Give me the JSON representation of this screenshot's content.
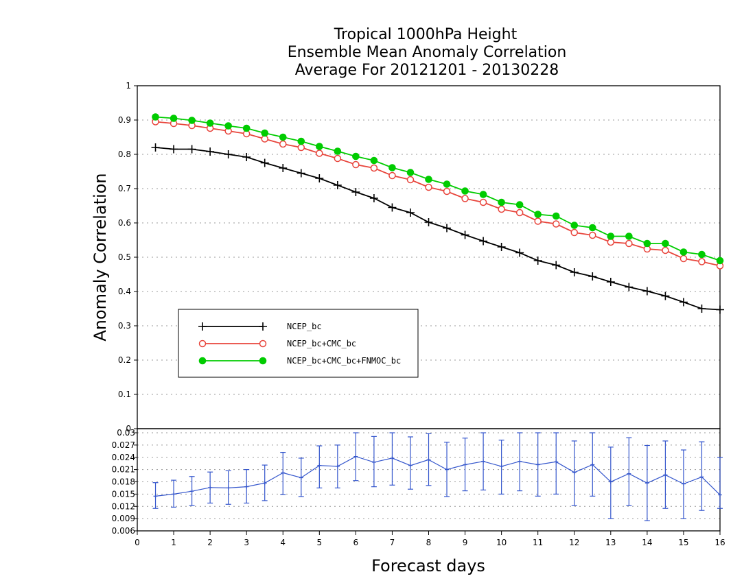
{
  "titles": {
    "line1": "Tropical 1000hPa Height",
    "line2": "Ensemble Mean Anomaly Correlation",
    "line3": "Average For 20121201 - 20130228"
  },
  "colors": {
    "ncep": "#000000",
    "ncep_cmc": "#e8453c",
    "ncep_cmc_fnmoc": "#00cc00",
    "diff": "#3355cc"
  },
  "chart_data": [
    {
      "type": "line",
      "xlabel": "Forecast days",
      "ylabel": "Anomaly Correlation",
      "xlim": [
        0,
        16
      ],
      "ylim": [
        0,
        1
      ],
      "xticks": [
        "0",
        "1",
        "2",
        "3",
        "4",
        "5",
        "6",
        "7",
        "8",
        "9",
        "10",
        "11",
        "12",
        "13",
        "14",
        "15",
        "16"
      ],
      "yticks": [
        "0",
        "0.1",
        "0.2",
        "0.3",
        "0.4",
        "0.5",
        "0.6",
        "0.7",
        "0.8",
        "0.9",
        "1"
      ],
      "grid": true,
      "legend_position": "lower-left",
      "x": [
        0.5,
        1,
        1.5,
        2,
        2.5,
        3,
        3.5,
        4,
        4.5,
        5,
        5.5,
        6,
        6.5,
        7,
        7.5,
        8,
        8.5,
        9,
        9.5,
        10,
        10.5,
        11,
        11.5,
        12,
        12.5,
        13,
        13.5,
        14,
        14.5,
        15,
        15.5,
        16
      ],
      "series": [
        {
          "name": "NCEP_bc",
          "marker": "plus",
          "values": [
            0.82,
            0.815,
            0.815,
            0.808,
            0.8,
            0.792,
            0.775,
            0.76,
            0.745,
            0.73,
            0.71,
            0.69,
            0.672,
            0.645,
            0.63,
            0.602,
            0.585,
            0.565,
            0.547,
            0.53,
            0.513,
            0.49,
            0.477,
            0.456,
            0.444,
            0.428,
            0.413,
            0.401,
            0.387,
            0.369,
            0.35,
            0.347
          ]
        },
        {
          "name": "NCEP_bc+CMC_bc",
          "marker": "open-circle",
          "values": [
            0.895,
            0.89,
            0.884,
            0.876,
            0.868,
            0.86,
            0.845,
            0.83,
            0.82,
            0.803,
            0.788,
            0.77,
            0.76,
            0.738,
            0.726,
            0.704,
            0.692,
            0.671,
            0.66,
            0.64,
            0.63,
            0.605,
            0.597,
            0.572,
            0.564,
            0.544,
            0.54,
            0.524,
            0.52,
            0.496,
            0.487,
            0.475
          ]
        },
        {
          "name": "NCEP_bc+CMC_bc+FNMOC_bc",
          "marker": "filled-circle",
          "values": [
            0.909,
            0.905,
            0.899,
            0.891,
            0.883,
            0.876,
            0.862,
            0.85,
            0.838,
            0.823,
            0.809,
            0.794,
            0.782,
            0.761,
            0.747,
            0.727,
            0.713,
            0.693,
            0.683,
            0.66,
            0.653,
            0.625,
            0.62,
            0.593,
            0.586,
            0.561,
            0.561,
            0.54,
            0.54,
            0.515,
            0.508,
            0.49
          ]
        }
      ]
    },
    {
      "type": "line",
      "xlim": [
        0,
        16
      ],
      "ylim": [
        0.006,
        0.03
      ],
      "yticks": [
        "0.006",
        "0.009",
        "0.012",
        "0.015",
        "0.018",
        "0.021",
        "0.024",
        "0.027",
        "0.03"
      ],
      "x": [
        0.5,
        1,
        1.5,
        2,
        2.5,
        3,
        3.5,
        4,
        4.5,
        5,
        5.5,
        6,
        6.5,
        7,
        7.5,
        8,
        8.5,
        9,
        9.5,
        10,
        10.5,
        11,
        11.5,
        12,
        12.5,
        13,
        13.5,
        14,
        14.5,
        15,
        15.5,
        16
      ],
      "series": [
        {
          "name": "",
          "values": [
            0.0145,
            0.015,
            0.0157,
            0.0166,
            0.0165,
            0.0168,
            0.0177,
            0.0202,
            0.019,
            0.022,
            0.0218,
            0.0242,
            0.0228,
            0.0238,
            0.022,
            0.0234,
            0.021,
            0.0222,
            0.023,
            0.0218,
            0.023,
            0.0222,
            0.0229,
            0.0203,
            0.0222,
            0.018,
            0.02,
            0.0177,
            0.0197,
            0.0175,
            0.0192,
            0.0148
          ],
          "error_low": [
            0.0115,
            0.0118,
            0.0122,
            0.0128,
            0.0125,
            0.0128,
            0.0134,
            0.0149,
            0.0144,
            0.0165,
            0.0165,
            0.0183,
            0.0168,
            0.0172,
            0.0162,
            0.0171,
            0.0144,
            0.0158,
            0.016,
            0.015,
            0.0158,
            0.0145,
            0.015,
            0.0122,
            0.0145,
            0.009,
            0.0122,
            0.0085,
            0.0115,
            0.009,
            0.011,
            0.0115
          ],
          "error_high": [
            0.0178,
            0.0184,
            0.0193,
            0.0204,
            0.0207,
            0.021,
            0.0221,
            0.0252,
            0.0238,
            0.0268,
            0.027,
            0.03,
            0.0291,
            0.0301,
            0.029,
            0.0298,
            0.0277,
            0.0287,
            0.0305,
            0.0282,
            0.0303,
            0.03,
            0.0306,
            0.028,
            0.0302,
            0.0265,
            0.0288,
            0.0269,
            0.028,
            0.0258,
            0.0278,
            0.024
          ]
        }
      ]
    }
  ]
}
